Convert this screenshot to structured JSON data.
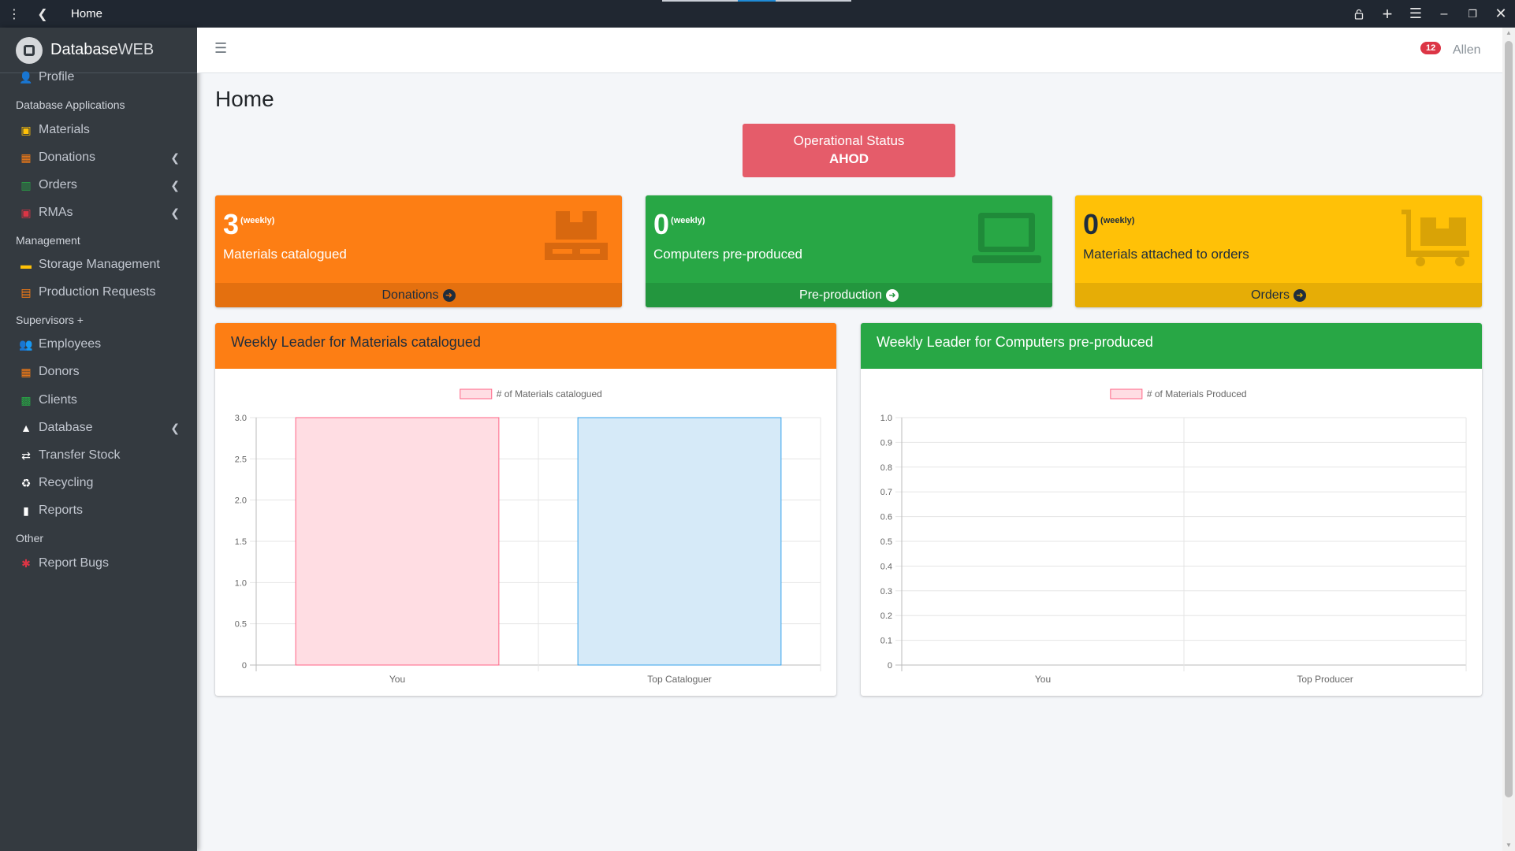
{
  "browser": {
    "tab_title": "Home",
    "icons": [
      "kebab-icon",
      "back-arrow-icon",
      "lock-icon",
      "plus-icon",
      "menu-icon",
      "minimize-icon",
      "restore-icon",
      "close-icon"
    ]
  },
  "brand": {
    "name_bold": "Database",
    "name_thin": "WEB"
  },
  "sidebar": {
    "items": [
      {
        "label": "Profile",
        "icon": "user-icon",
        "color": "#c2c7d0"
      },
      {
        "header": "Database Applications"
      },
      {
        "label": "Materials",
        "icon": "materials-icon",
        "color": "#ffc107"
      },
      {
        "label": "Donations",
        "icon": "dolly-icon",
        "color": "#fd7e14",
        "chevron": true
      },
      {
        "label": "Orders",
        "icon": "chart-icon",
        "color": "#28a745",
        "chevron": true
      },
      {
        "label": "RMAs",
        "icon": "rma-icon",
        "color": "#dc3545",
        "chevron": true
      },
      {
        "header": "Management"
      },
      {
        "label": "Storage Management",
        "icon": "storage-icon",
        "color": "#ffc107"
      },
      {
        "label": "Production Requests",
        "icon": "clipboard-icon",
        "color": "#fd7e14"
      },
      {
        "header": "Supervisors +"
      },
      {
        "label": "Employees",
        "icon": "users-icon",
        "color": "#ffc107"
      },
      {
        "label": "Donors",
        "icon": "donors-icon",
        "color": "#fd7e14"
      },
      {
        "label": "Clients",
        "icon": "id-card-icon",
        "color": "#28a745"
      },
      {
        "label": "Database",
        "icon": "database-icon",
        "color": "#ffffff",
        "chevron": true
      },
      {
        "label": "Transfer Stock",
        "icon": "exchange-icon",
        "color": "#ffffff"
      },
      {
        "label": "Recycling",
        "icon": "recycle-icon",
        "color": "#ffffff"
      },
      {
        "label": "Reports",
        "icon": "book-icon",
        "color": "#ffffff"
      },
      {
        "header": "Other"
      },
      {
        "label": "Report Bugs",
        "icon": "bug-icon",
        "color": "#dc3545"
      }
    ]
  },
  "navbar": {
    "notification_count": "12",
    "user_name": "Allen"
  },
  "page": {
    "title": "Home"
  },
  "status": {
    "label": "Operational Status",
    "value": "AHOD",
    "color": "#e55c6a"
  },
  "boxes": [
    {
      "value": "3",
      "period": "(weekly)",
      "description": "Materials catalogued",
      "footer": "Donations",
      "icon": "pallet-icon"
    },
    {
      "value": "0",
      "period": "(weekly)",
      "description": "Computers pre-produced",
      "footer": "Pre-production",
      "icon": "laptop-icon"
    },
    {
      "value": "0",
      "period": "(weekly)",
      "description": "Materials attached to orders",
      "footer": "Orders",
      "icon": "dolly-flatbed-icon"
    }
  ],
  "cards": [
    {
      "title": "Weekly Leader for Materials catalogued"
    },
    {
      "title": "Weekly Leader for Computers pre-produced"
    }
  ],
  "chart_data": [
    {
      "type": "bar",
      "categories": [
        "You",
        "Top Cataloguer"
      ],
      "series": [
        {
          "name": "# of Materials catalogued",
          "values": [
            3,
            3
          ]
        }
      ],
      "bar_colors": [
        "#ffdde3",
        "#d6eaf8"
      ],
      "bar_borders": [
        "#ff6384",
        "#36a2eb"
      ],
      "ylim": [
        0,
        3
      ],
      "yticks": [
        "3.0",
        "2.5",
        "2.0",
        "1.5",
        "1.0",
        "0.5",
        "0"
      ],
      "legend": "top",
      "grid": true
    },
    {
      "type": "bar",
      "categories": [
        "You",
        "Top Producer"
      ],
      "series": [
        {
          "name": "# of Materials Produced",
          "values": [
            0,
            0
          ]
        }
      ],
      "bar_colors": [
        "#ffdde3",
        "#d6eaf8"
      ],
      "bar_borders": [
        "#ff6384",
        "#36a2eb"
      ],
      "ylim": [
        0,
        1
      ],
      "yticks": [
        "1.0",
        "0.9",
        "0.8",
        "0.7",
        "0.6",
        "0.5",
        "0.4",
        "0.3",
        "0.2",
        "0.1",
        "0"
      ],
      "legend": "top",
      "grid": true
    }
  ]
}
